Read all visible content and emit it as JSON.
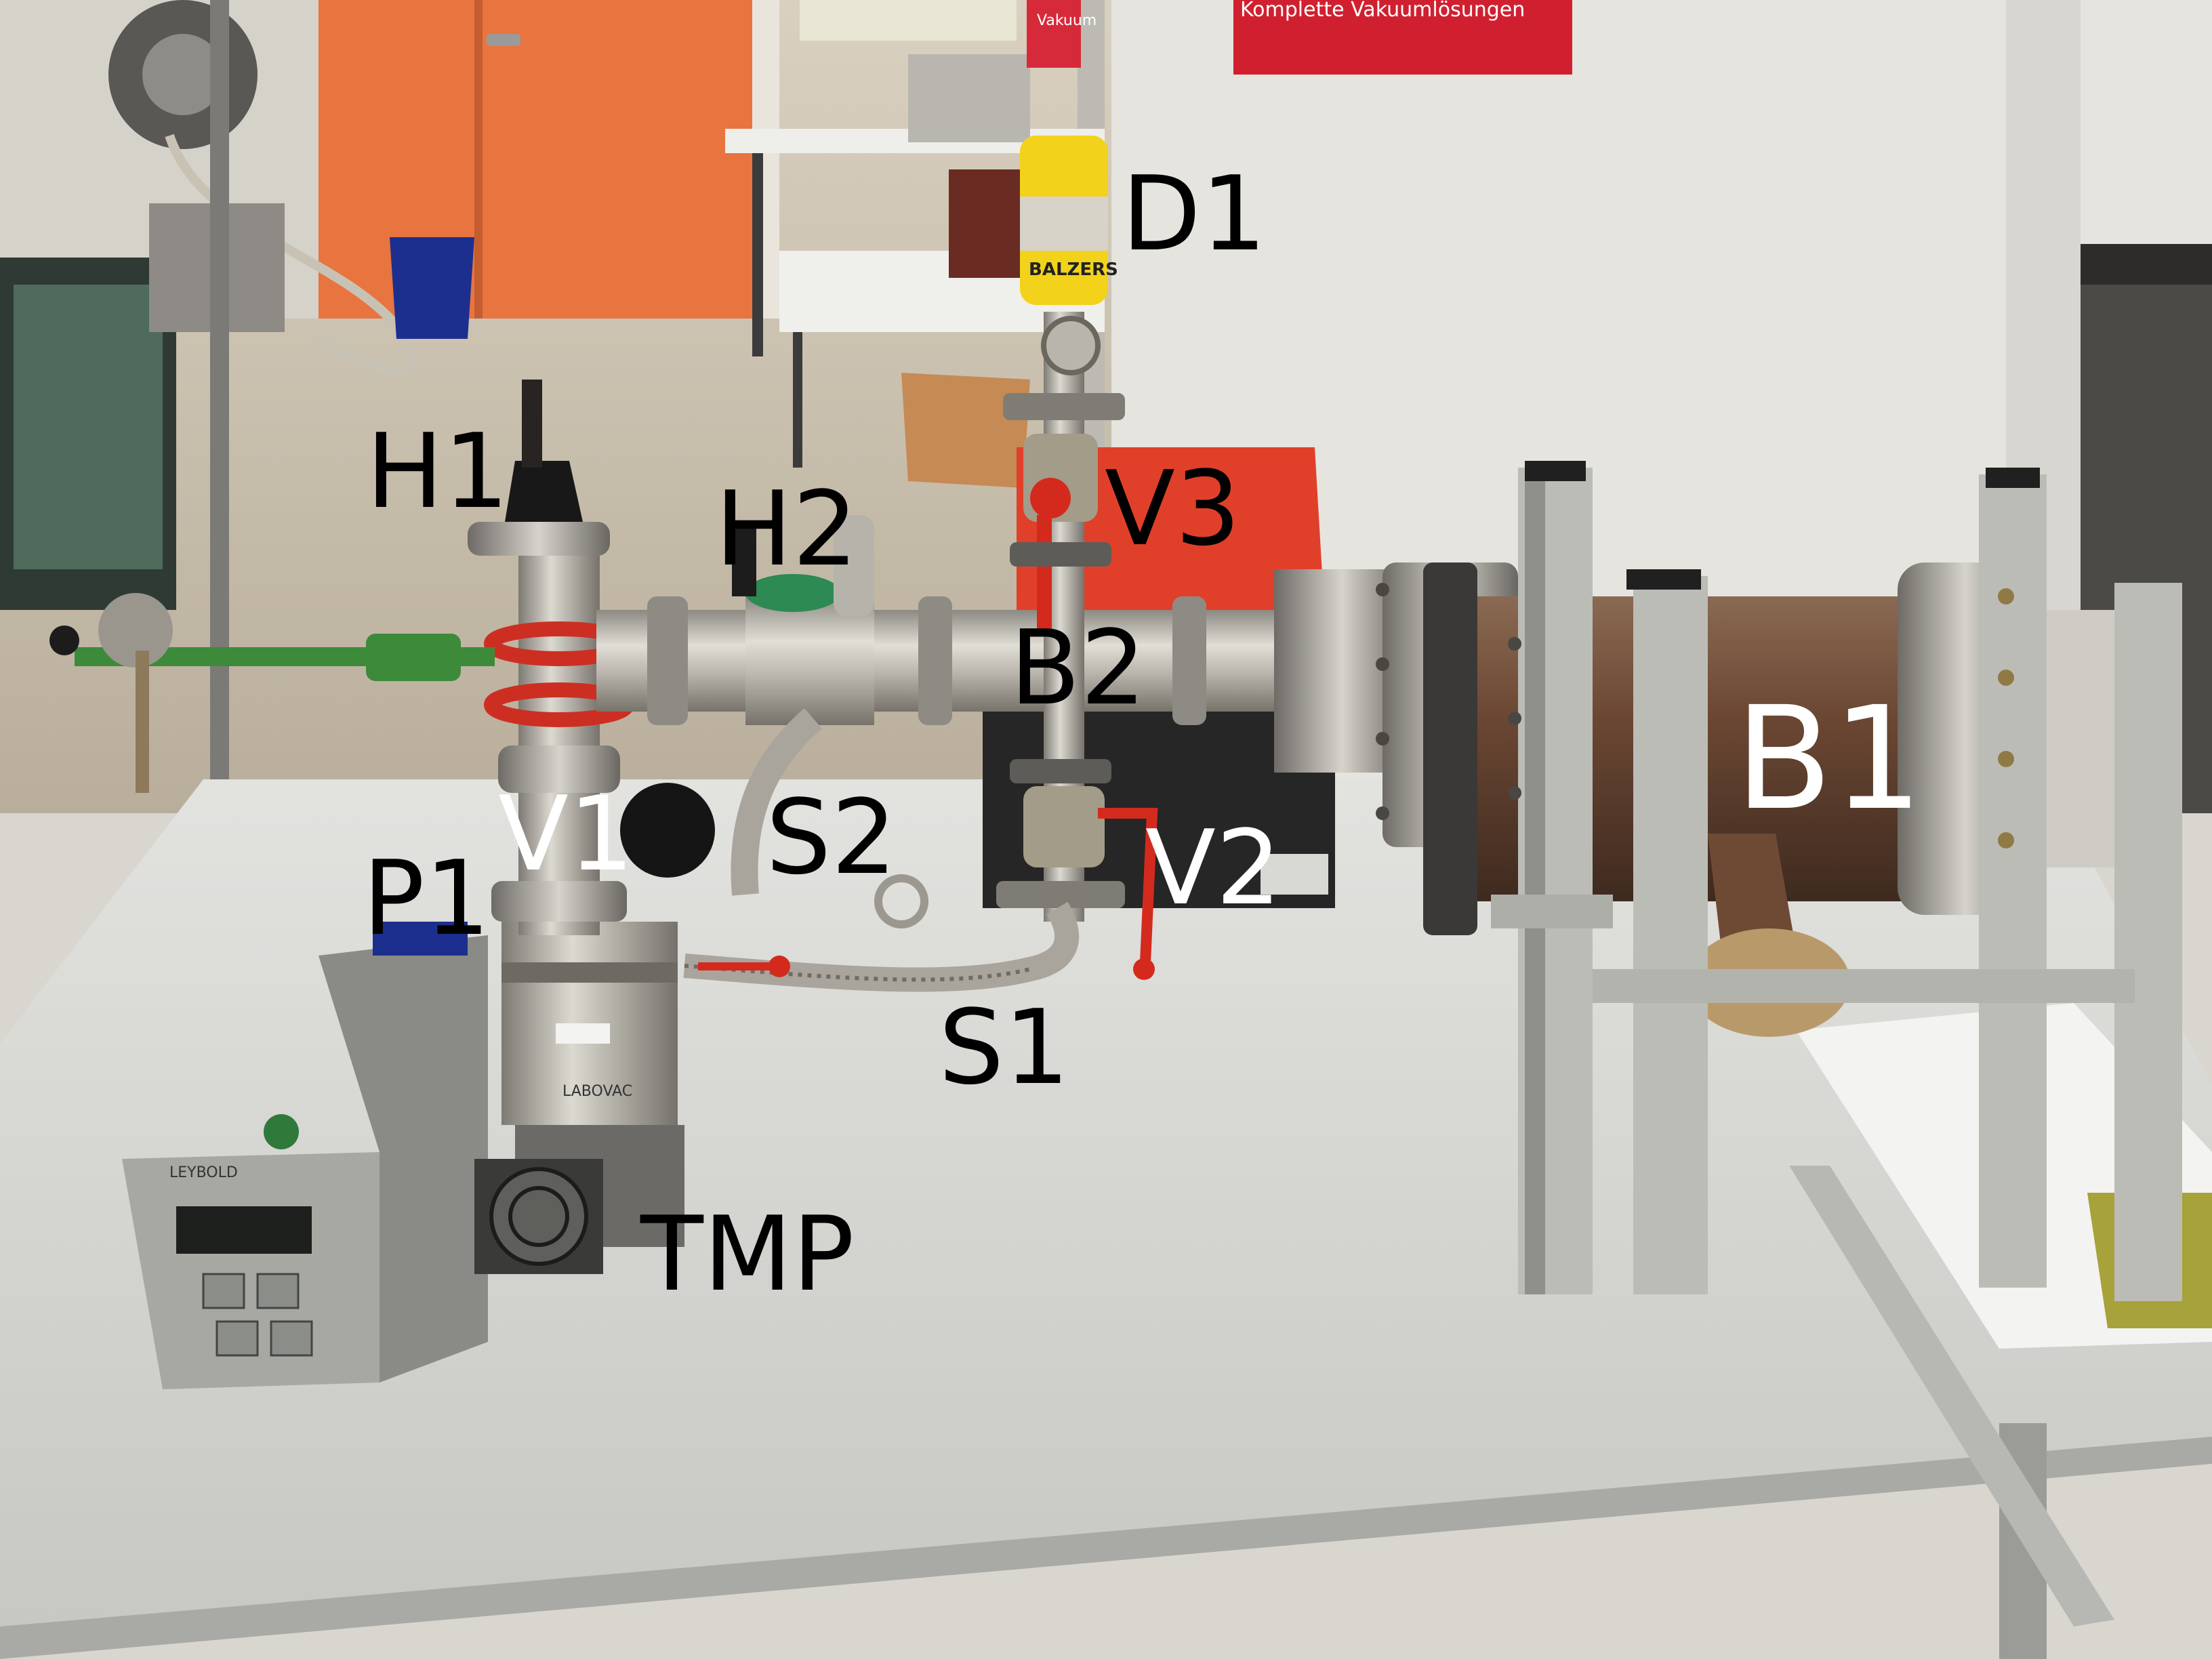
{
  "photo": {
    "labels": {
      "d1": "D1",
      "h1": "H1",
      "h2": "H2",
      "v3": "V3",
      "b2": "B2",
      "b1": "B1",
      "v1": "V1",
      "s2": "S2",
      "p1": "P1",
      "v2": "V2",
      "s1": "S1",
      "tmp": "TMP"
    },
    "printed_text": {
      "gauge_brand": "BALZERS",
      "poster_heading": "Komplette Vakuumlösungen",
      "red_sign": "Vakuum",
      "controller_brand": "LEYBOLD",
      "pump_label": "LABOVAC"
    },
    "colors": {
      "floor": "#c9bfae",
      "wall": "#e4e2dc",
      "door": "#e8743f",
      "table": "#d6d6d3",
      "steel": "#b9b6ae",
      "copper_chamber": "#6e4a34",
      "red_box": "#e0402a",
      "valve_red": "#d42a1e",
      "gauge_yellow": "#f2d21a",
      "clamp_green": "#3c8a3a"
    }
  }
}
